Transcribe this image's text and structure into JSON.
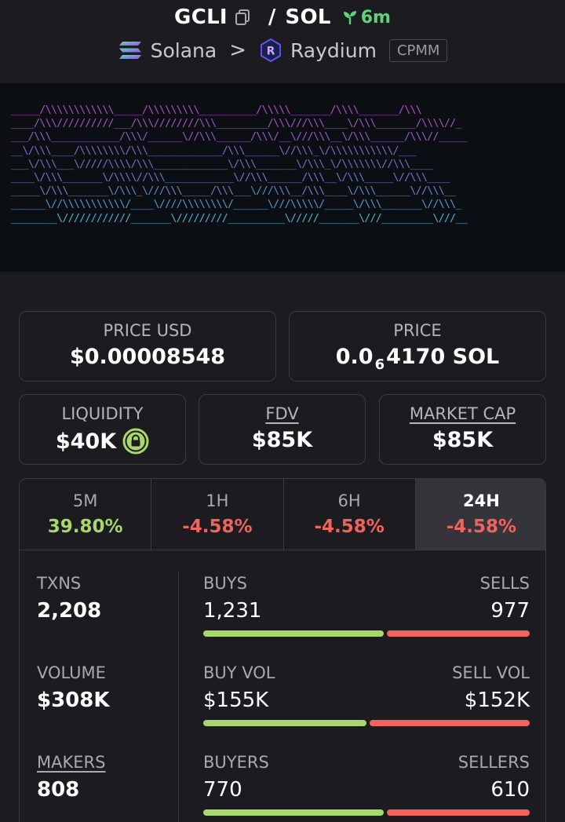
{
  "header": {
    "symbol": "GCLI",
    "separator": "/",
    "quote": "SOL",
    "age": "6m",
    "chain": "Solana",
    "chevron": ">",
    "dex": "Raydium",
    "pool_type": "CPMM"
  },
  "colors": {
    "accent_green": "#a8d86a",
    "accent_red": "#f2635d",
    "age_green": "#5fd37a"
  },
  "banner": {
    "lines": [
      "_____/\\\\\\\\\\\\\\\\\\\\\\\\_____/\\\\\\\\\\\\\\\\\\__________/\\\\\\\\\\_______/\\\\\\\\_______/\\\\\\",
      "____/\\\\\\//////////___/\\\\\\////////\\\\\\_________/\\\\\\///\\\\\\____\\/\\\\\\_______/\\\\\\\\//_",
      "___/\\\\\\____________/\\\\\\/______\\//\\\\\\______/\\\\\\/__\\///\\\\\\__\\/\\\\\\______/\\\\\\//_____",
      "__\\/\\\\\\____/\\\\\\\\\\\\\\\\/\\\\\\_____________/\\\\\\______\\//\\\\\\_\\/\\\\\\\\\\\\\\\\\\\\\\/___",
      "___\\/\\\\\\___\\/////\\\\\\\\/\\\\\\_____________\\/\\\\\\_______\\/\\\\\\_\\/\\\\\\\\\\\\\\//\\\\\\____",
      "____\\/\\\\\\_______\\/\\\\\\\\//\\\\\\____________\\//\\\\\\______/\\\\\\__\\/\\\\\\_____\\//\\\\\\____",
      "_____\\/\\\\\\_______\\/\\\\\\_\\///\\\\\\_____/\\\\\\___\\///\\\\\\__/\\\\\\____\\/\\\\\\______\\//\\\\\\__",
      "______\\//\\\\\\\\\\\\\\\\\\\\\\/____\\////\\\\\\\\\\\\\\\\/______\\///\\\\\\\\\\/_____\\/\\\\\\_______\\//\\\\\\_",
      "________\\////////////_______\\/////////__________\\/////_______\\///_________\\///__"
    ]
  },
  "cards": {
    "price_usd": {
      "label": "PRICE USD",
      "value": "$0.00008548"
    },
    "price": {
      "label": "PRICE",
      "prefix": "0.0",
      "subscript": "6",
      "suffix": "4170 SOL"
    },
    "liquidity": {
      "label": "LIQUIDITY",
      "value": "$40K"
    },
    "fdv": {
      "label": "FDV",
      "value": "$85K"
    },
    "market_cap": {
      "label": "MARKET CAP",
      "value": "$85K"
    }
  },
  "tabs": [
    {
      "label": "5M",
      "value": "39.80%"
    },
    {
      "label": "1H",
      "value": "-4.58%"
    },
    {
      "label": "6H",
      "value": "-4.58%"
    },
    {
      "label": "24H",
      "value": "-4.58%"
    }
  ],
  "active_tab": "24H",
  "metrics": {
    "txns": {
      "label": "TXNS",
      "value": "2,208"
    },
    "volume": {
      "label": "VOLUME",
      "value": "$308K"
    },
    "makers": {
      "label": "MAKERS",
      "value": "808"
    }
  },
  "splits": {
    "buys": {
      "left_label": "BUYS",
      "right_label": "SELLS",
      "left_value": "1,231",
      "right_value": "977",
      "left_share": 0.5575
    },
    "vol": {
      "left_label": "BUY VOL",
      "right_label": "SELL VOL",
      "left_value": "$155K",
      "right_value": "$152K",
      "left_share": 0.5049
    },
    "buyers": {
      "left_label": "BUYERS",
      "right_label": "SELLERS",
      "left_value": "770",
      "right_value": "610",
      "left_share": 0.558
    }
  }
}
